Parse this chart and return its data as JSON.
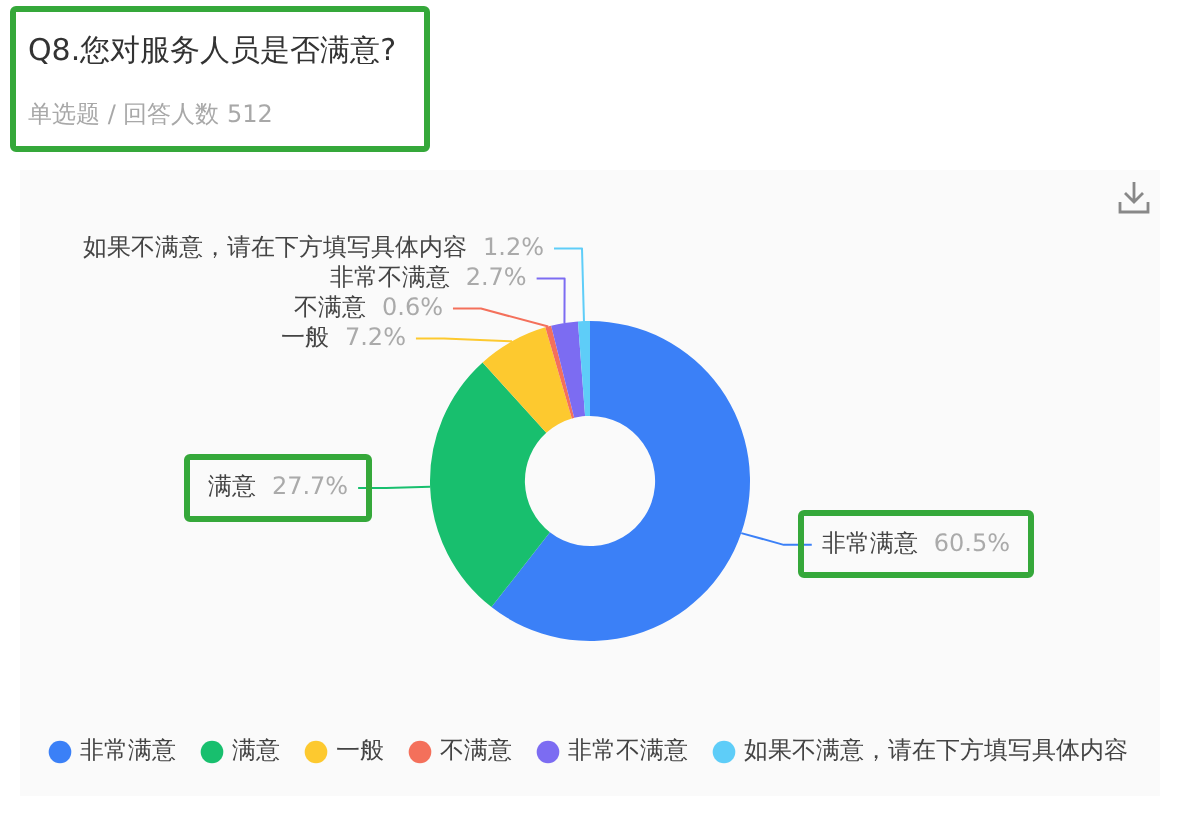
{
  "chart_data": {
    "type": "donut",
    "title": "Q8.您对服务人员是否满意?",
    "subtitle": "单选题 / 回答人数 512",
    "categories": [
      "非常满意",
      "满意",
      "一般",
      "不满意",
      "非常不满意",
      "如果不满意，请在下方填写具体内容"
    ],
    "values": [
      60.5,
      27.7,
      7.2,
      0.6,
      2.7,
      1.2
    ],
    "value_labels": [
      "60.5%",
      "27.7%",
      "7.2%",
      "0.6%",
      "2.7%",
      "1.2%"
    ],
    "colors": [
      "#3b80f7",
      "#18bf6e",
      "#fdc92f",
      "#f4705b",
      "#7c6cf2",
      "#5ecdf8"
    ],
    "legend": "bottom"
  }
}
